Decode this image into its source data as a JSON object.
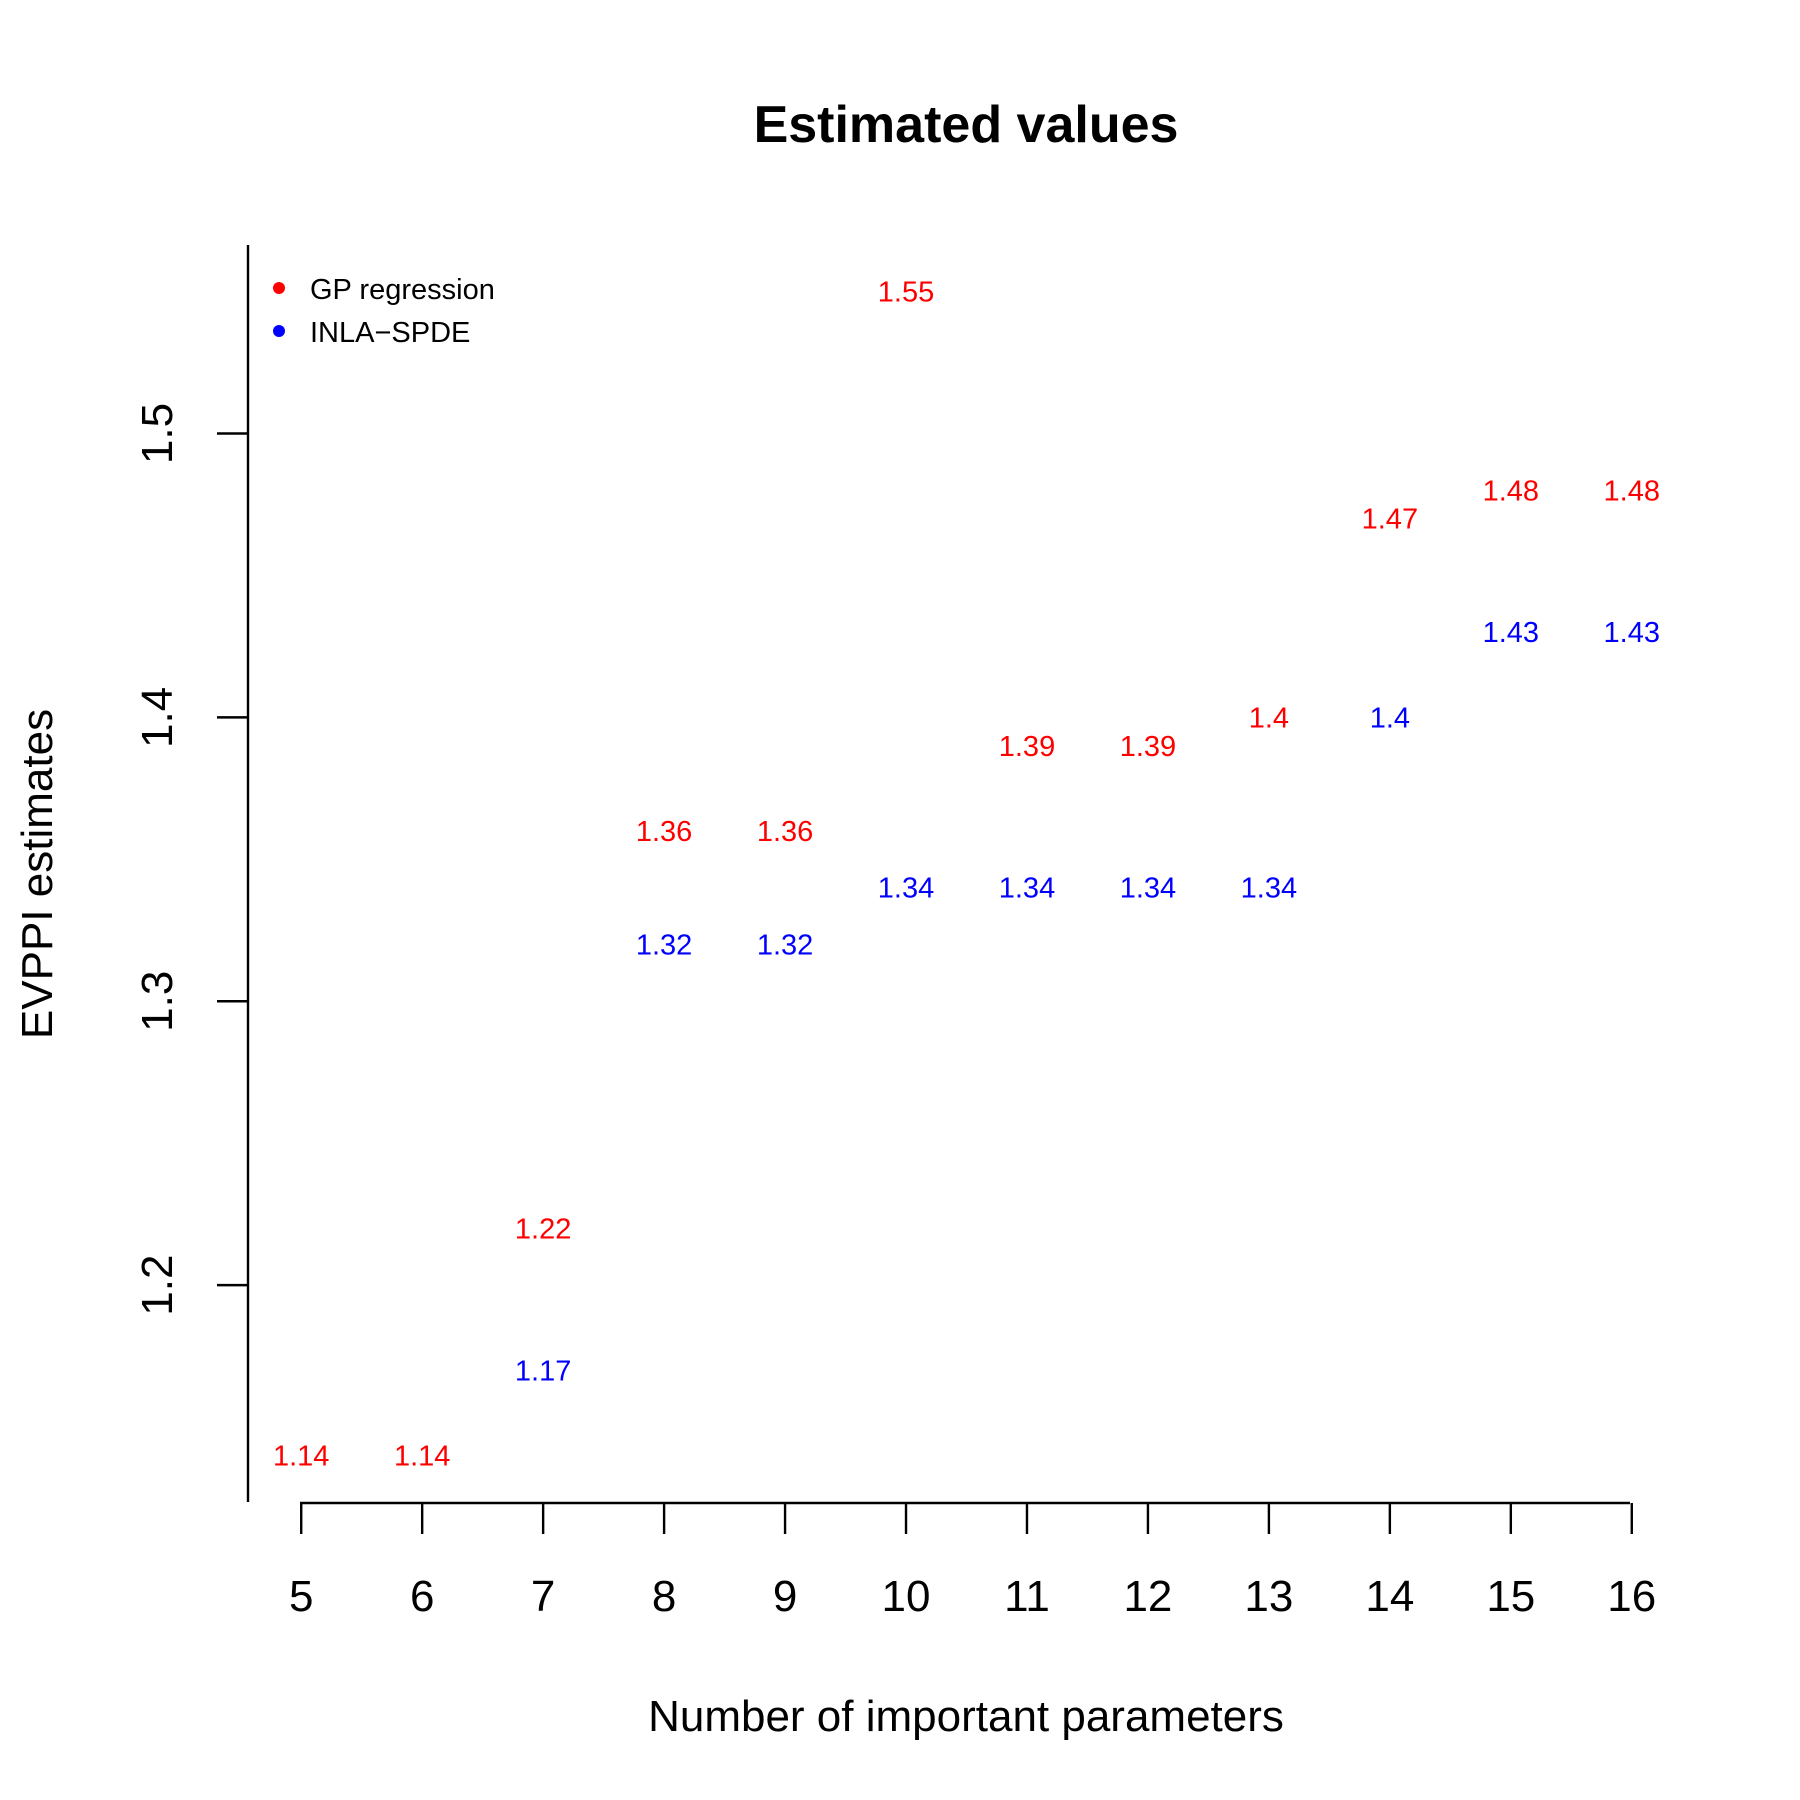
{
  "chart_data": {
    "type": "scatter",
    "title": "Estimated values",
    "xlabel": "Number of important parameters",
    "ylabel": "EVPPI estimates",
    "x": [
      5,
      6,
      7,
      8,
      9,
      10,
      11,
      12,
      13,
      14,
      15,
      16
    ],
    "x_ticks": [
      "5",
      "6",
      "7",
      "8",
      "9",
      "10",
      "11",
      "12",
      "13",
      "14",
      "15",
      "16"
    ],
    "y_ticks": [
      "1.2",
      "1.3",
      "1.4",
      "1.5"
    ],
    "xlim": [
      4.56,
      16.44
    ],
    "ylim": [
      1.1236,
      1.5664
    ],
    "grid": false,
    "legend_position": "top-left",
    "marker": "text-labels",
    "series": [
      {
        "name": "GP regression",
        "color": "#ff0000",
        "values": [
          1.14,
          1.14,
          1.22,
          1.36,
          1.36,
          1.55,
          1.39,
          1.39,
          1.4,
          1.47,
          1.48,
          1.48
        ],
        "labels": [
          "1.14",
          "1.14",
          "1.22",
          "1.36",
          "1.36",
          "1.55",
          "1.39",
          "1.39",
          "1.4",
          "1.47",
          "1.48",
          "1.48"
        ]
      },
      {
        "name": "INLA−SPDE",
        "color": "#0000ff",
        "values": [
          null,
          null,
          1.17,
          1.32,
          1.32,
          1.34,
          1.34,
          1.34,
          1.34,
          1.4,
          1.43,
          1.43
        ],
        "labels": [
          "",
          "",
          "1.17",
          "1.32",
          "1.32",
          "1.34",
          "1.34",
          "1.34",
          "1.34",
          "1.4",
          "1.43",
          "1.43"
        ]
      }
    ]
  }
}
